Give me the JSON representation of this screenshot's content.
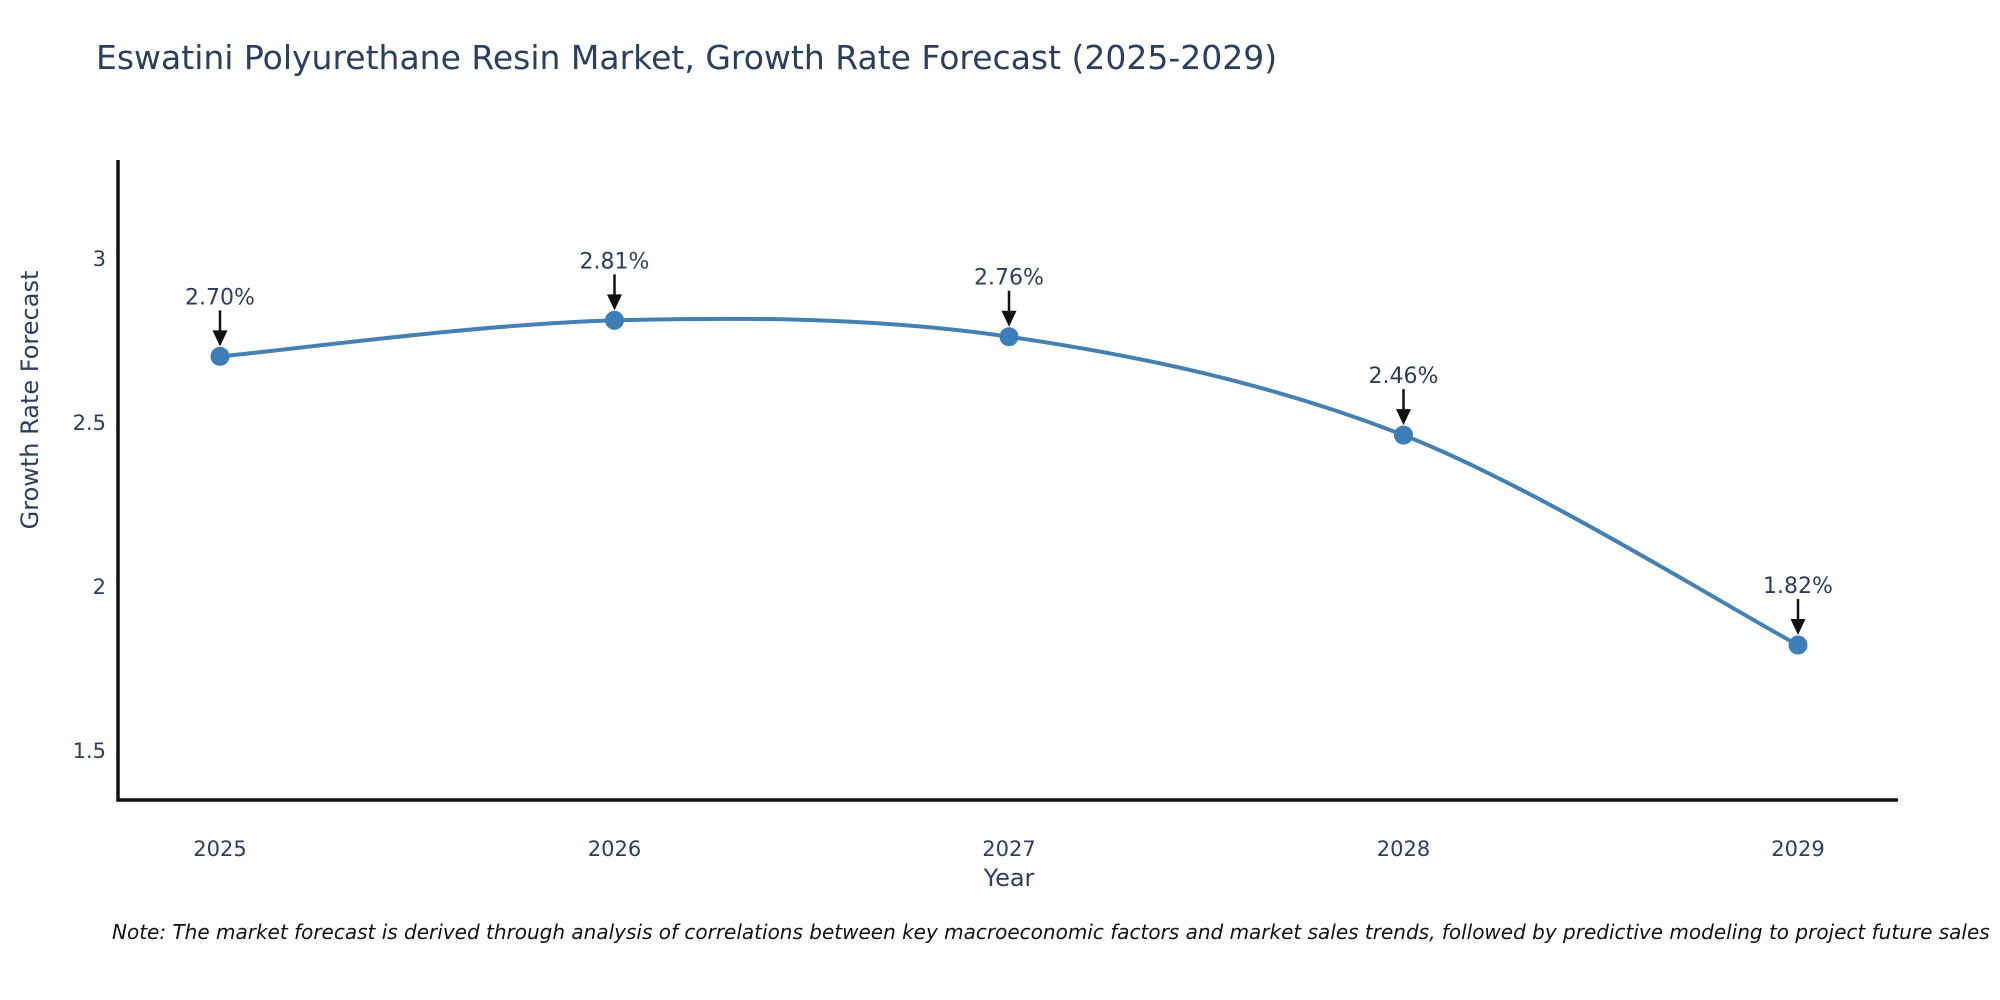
{
  "title": "Eswatini Polyurethane Resin Market, Growth Rate Forecast (2025-2029)",
  "note": "Note: The market forecast is derived through analysis of correlations between key macroeconomic factors and market sales trends, followed by predictive modeling to project future sales",
  "chart_data": {
    "type": "line",
    "line_shape": "spline",
    "title": "Eswatini Polyurethane Resin Market, Growth Rate Forecast (2025-2029)",
    "xlabel": "Year",
    "ylabel": "Growth Rate Forecast",
    "x": [
      "2025",
      "2026",
      "2027",
      "2028",
      "2029"
    ],
    "series": [
      {
        "name": "Growth Rate Forecast",
        "values": [
          2.7,
          2.81,
          2.76,
          2.46,
          1.82
        ]
      }
    ],
    "point_labels": [
      "2.70%",
      "2.81%",
      "2.76%",
      "2.46%",
      "1.82%"
    ],
    "ytick_labels": [
      "1.5",
      "2",
      "2.5",
      "3"
    ],
    "ytick_values": [
      1.5,
      2,
      2.5,
      3
    ],
    "ylim": [
      1.33,
      3.3
    ],
    "grid": false,
    "legend_position": "none",
    "line_color": "#4580b3",
    "marker_color": "#3d7db8",
    "axis_color": "#111111",
    "arrow_color": "#111111",
    "text_color": "#2a3f5f"
  },
  "colors": {
    "accent": "#4580b3",
    "text": "#2a3f5f",
    "axis": "#111111",
    "background": "#ffffff"
  }
}
